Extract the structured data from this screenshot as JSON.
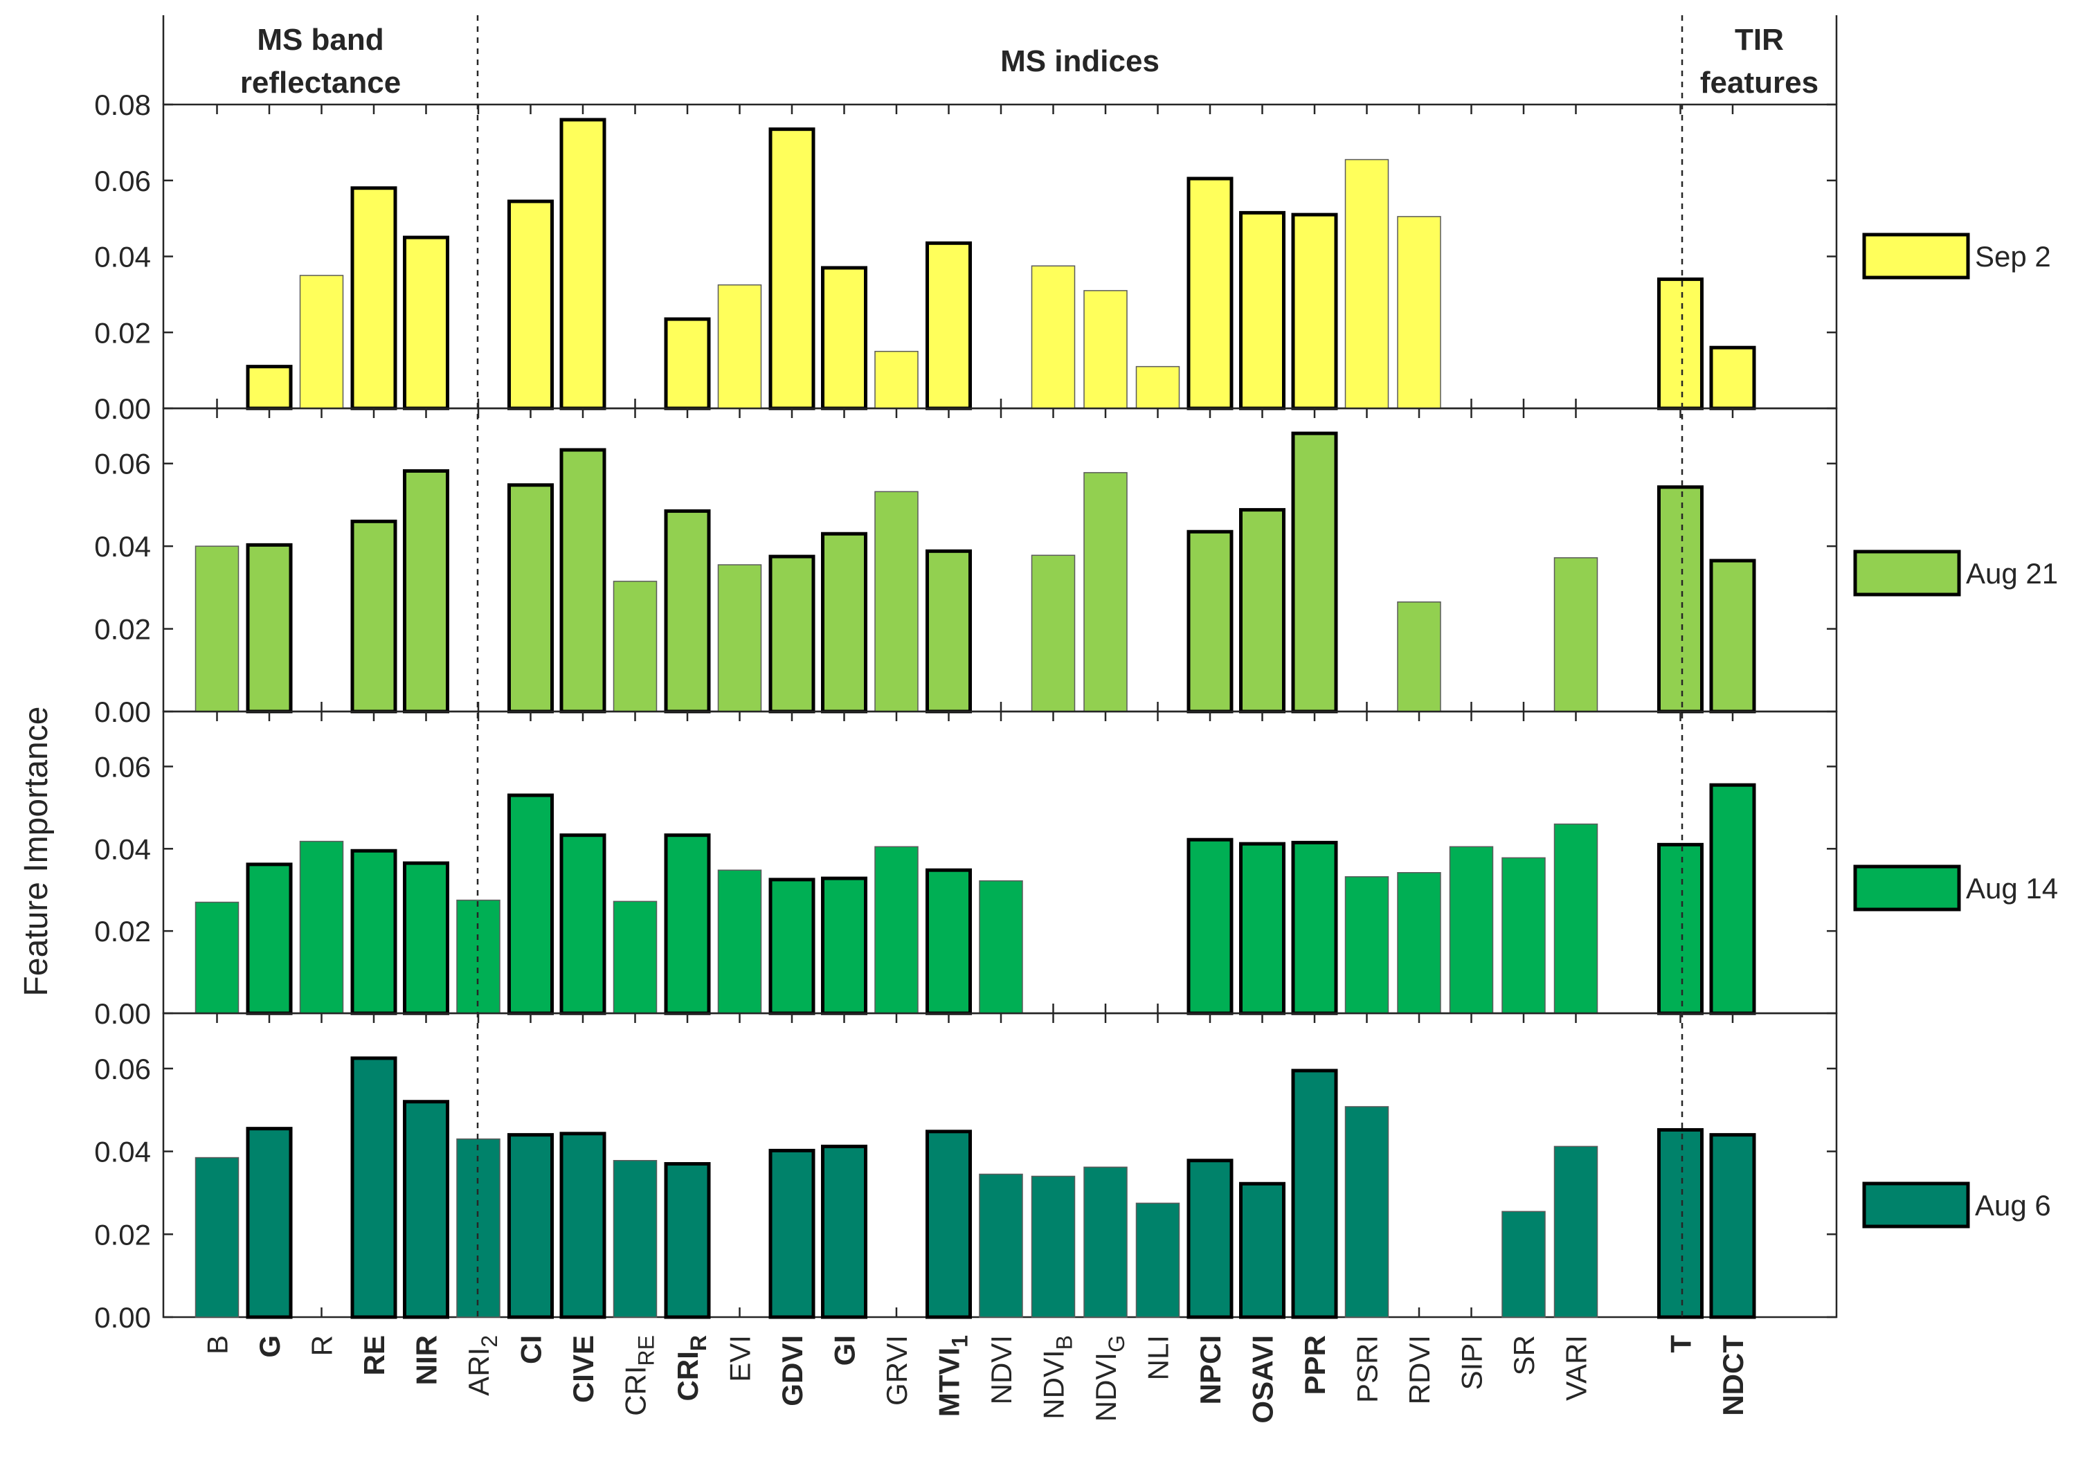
{
  "chart_data": {
    "type": "bar",
    "ylabel": "Feature Importance",
    "groups": [
      {
        "title_lines": [
          "MS band",
          "reflectance"
        ],
        "first_index": 0,
        "last_index": 4
      },
      {
        "title_lines": [
          "MS indices"
        ],
        "first_index": 5,
        "last_index": 27
      },
      {
        "title_lines": [
          "TIR",
          "features"
        ],
        "first_index": 28,
        "last_index": 29
      }
    ],
    "categories": [
      {
        "base": "B",
        "sub": "",
        "bold": false
      },
      {
        "base": "G",
        "sub": "",
        "bold": true
      },
      {
        "base": "R",
        "sub": "",
        "bold": false
      },
      {
        "base": "RE",
        "sub": "",
        "bold": true
      },
      {
        "base": "NIR",
        "sub": "",
        "bold": true
      },
      {
        "base": "ARI",
        "sub": "2",
        "bold": false
      },
      {
        "base": "CI",
        "sub": "",
        "bold": true
      },
      {
        "base": "CIVE",
        "sub": "",
        "bold": true
      },
      {
        "base": "CRI",
        "sub": "RE",
        "bold": false
      },
      {
        "base": "CRI",
        "sub": "R",
        "bold": true
      },
      {
        "base": "EVI",
        "sub": "",
        "bold": false
      },
      {
        "base": "GDVI",
        "sub": "",
        "bold": true
      },
      {
        "base": "GI",
        "sub": "",
        "bold": true
      },
      {
        "base": "GRVI",
        "sub": "",
        "bold": false
      },
      {
        "base": "MTVI",
        "sub": "1",
        "bold": true
      },
      {
        "base": "NDVI",
        "sub": "",
        "bold": false
      },
      {
        "base": "NDVI",
        "sub": "B",
        "bold": false
      },
      {
        "base": "NDVI",
        "sub": "G",
        "bold": false
      },
      {
        "base": "NLI",
        "sub": "",
        "bold": false
      },
      {
        "base": "NPCI",
        "sub": "",
        "bold": true
      },
      {
        "base": "OSAVI",
        "sub": "",
        "bold": true
      },
      {
        "base": "PPR",
        "sub": "",
        "bold": true
      },
      {
        "base": "PSRI",
        "sub": "",
        "bold": false
      },
      {
        "base": "RDVI",
        "sub": "",
        "bold": false
      },
      {
        "base": "SIPI",
        "sub": "",
        "bold": false
      },
      {
        "base": "SR",
        "sub": "",
        "bold": false
      },
      {
        "base": "VARI",
        "sub": "",
        "bold": false
      },
      {
        "base": "",
        "sub": "",
        "bold": false
      },
      {
        "base": "T",
        "sub": "",
        "bold": true
      },
      {
        "base": "NDCT",
        "sub": "",
        "bold": true
      }
    ],
    "series": [
      {
        "name": "Sep 2",
        "color": "#FFFF5B",
        "ylim": [
          0,
          0.08
        ],
        "yticks": [
          0,
          0.02,
          0.04,
          0.06,
          0.08
        ],
        "ytick_labels": [
          "0.00",
          "0.02",
          "0.04",
          "0.06",
          "0.08"
        ],
        "values": [
          0,
          0.011,
          0.035,
          0.058,
          0.045,
          0,
          0.0545,
          0.076,
          0,
          0.0235,
          0.0325,
          0.0735,
          0.037,
          0.015,
          0.0435,
          0,
          0.0375,
          0.031,
          0.011,
          0.0605,
          0.0515,
          0.051,
          0.0655,
          0.0505,
          0,
          0,
          0,
          0,
          0.034,
          0.016
        ],
        "bold_edge": [
          false,
          true,
          false,
          true,
          true,
          false,
          true,
          true,
          false,
          true,
          false,
          true,
          true,
          false,
          true,
          false,
          false,
          false,
          false,
          true,
          true,
          true,
          false,
          false,
          false,
          false,
          false,
          false,
          true,
          true
        ]
      },
      {
        "name": "Aug 21",
        "color": "#92D050",
        "ylim": [
          0,
          0.07
        ],
        "yticks": [
          0,
          0.02,
          0.04,
          0.06
        ],
        "ytick_labels": [
          "0.00",
          "0.02",
          "0.04",
          "0.06"
        ],
        "values": [
          0.04,
          0.0403,
          0,
          0.046,
          0.0582,
          0,
          0.0548,
          0.0633,
          0.0315,
          0.0485,
          0.0355,
          0.0375,
          0.043,
          0.0532,
          0.0388,
          0,
          0.0378,
          0.0578,
          0,
          0.0435,
          0.0488,
          0.0673,
          0,
          0.0265,
          0,
          0,
          0.0372,
          0,
          0.0543,
          0.0365
        ],
        "bold_edge": [
          false,
          true,
          false,
          true,
          true,
          false,
          true,
          true,
          false,
          true,
          false,
          true,
          true,
          false,
          true,
          false,
          false,
          false,
          false,
          true,
          true,
          true,
          false,
          false,
          false,
          false,
          false,
          false,
          true,
          true
        ]
      },
      {
        "name": "Aug 14",
        "color": "#00AF54",
        "ylim": [
          0,
          0.07
        ],
        "yticks": [
          0,
          0.02,
          0.04,
          0.06
        ],
        "ytick_labels": [
          "0.00",
          "0.02",
          "0.04",
          "0.06"
        ],
        "values": [
          0.027,
          0.0362,
          0.0418,
          0.0395,
          0.0365,
          0.0275,
          0.053,
          0.0433,
          0.0272,
          0.0433,
          0.0348,
          0.0325,
          0.0328,
          0.0405,
          0.0348,
          0.0322,
          0,
          0,
          0,
          0.0422,
          0.0412,
          0.0415,
          0.0332,
          0.0342,
          0.0405,
          0.0378,
          0.046,
          0,
          0.041,
          0.0555
        ],
        "bold_edge": [
          false,
          true,
          false,
          true,
          true,
          false,
          true,
          true,
          false,
          true,
          false,
          true,
          true,
          false,
          true,
          false,
          false,
          false,
          false,
          true,
          true,
          true,
          false,
          false,
          false,
          false,
          false,
          false,
          true,
          true
        ]
      },
      {
        "name": "Aug 6",
        "color": "#00826A",
        "ylim": [
          0,
          0.07
        ],
        "yticks": [
          0,
          0.02,
          0.04,
          0.06
        ],
        "ytick_labels": [
          "0.00",
          "0.02",
          "0.04",
          "0.06"
        ],
        "values": [
          0.0385,
          0.0455,
          0,
          0.0625,
          0.052,
          0.043,
          0.044,
          0.0443,
          0.0378,
          0.037,
          0,
          0.0402,
          0.0412,
          0,
          0.0448,
          0.0345,
          0.034,
          0.0362,
          0.0275,
          0.0378,
          0.0322,
          0.0595,
          0.0508,
          0,
          0,
          0.0255,
          0.0412,
          0,
          0.0452,
          0.044
        ],
        "bold_edge": [
          false,
          true,
          false,
          true,
          true,
          false,
          true,
          true,
          false,
          true,
          false,
          true,
          true,
          false,
          true,
          false,
          false,
          false,
          false,
          true,
          true,
          true,
          false,
          false,
          false,
          false,
          false,
          false,
          true,
          true
        ]
      }
    ]
  }
}
